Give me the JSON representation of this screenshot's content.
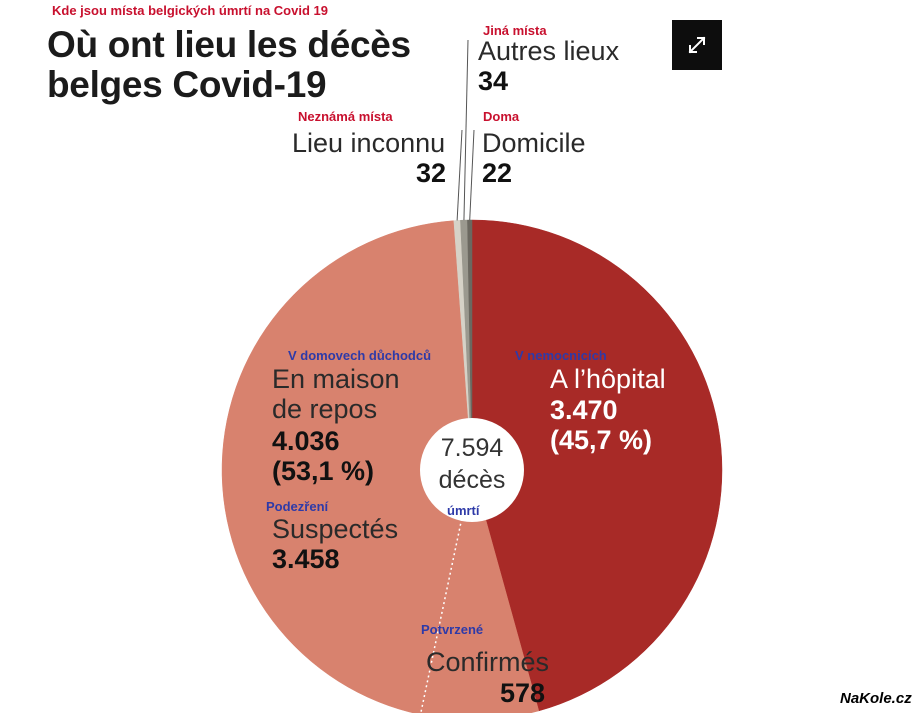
{
  "czech": {
    "heading": "Kde jsou místa belgických úmrtí na Covid 19",
    "other": "Jiná místa",
    "unknown": "Neznámá místa",
    "home": "Doma",
    "nursing": "V domovech důchodců",
    "hospital": "V nemocnicích",
    "suspected": "Podezření",
    "confirmed": "Potvrzené",
    "deaths": "úmrtí"
  },
  "chart_data": {
    "type": "pie",
    "title": "Où ont lieu les décès belges Covid-19",
    "title_lines": [
      "Où ont lieu les décès",
      "belges Covid-19"
    ],
    "total_value": "7.594",
    "total_label": "décès",
    "slices": [
      {
        "name": "A l’hôpital",
        "value": 3470,
        "value_label": "3.470",
        "percent_label": "(45,7 %)",
        "color": "#a82a27"
      },
      {
        "name": "Confirmés",
        "value": 578,
        "value_label": "578",
        "color": "#d8826e"
      },
      {
        "name": "Suspectés",
        "value": 3458,
        "value_label": "3.458",
        "color": "#d8826e"
      },
      {
        "name": "Lieu inconnu",
        "value": 32,
        "value_label": "32",
        "color": "#d6d2c7"
      },
      {
        "name": "Autres lieux",
        "value": 34,
        "value_label": "34",
        "color": "#9b998f"
      },
      {
        "name": "Domicile",
        "value": 22,
        "value_label": "22",
        "color": "#6b6860"
      }
    ],
    "group": {
      "name_lines": [
        "En maison",
        "de repos"
      ],
      "value_label": "4.036",
      "percent_label": "(53,1 %)"
    }
  },
  "ui": {
    "expand_icon": "expand-arrows-icon",
    "watermark": "NaKole.cz"
  }
}
